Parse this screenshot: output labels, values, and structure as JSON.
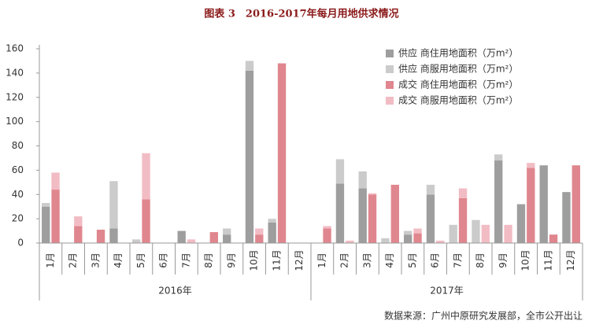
{
  "chart_data": {
    "type": "stacked-bar",
    "title": "图表 3　2016-2017年每月用地供求情况",
    "categories": [
      "1月",
      "2月",
      "3月",
      "4月",
      "5月",
      "6月",
      "7月",
      "8月",
      "9月",
      "10月",
      "11月",
      "12月",
      "1月",
      "2月",
      "3月",
      "4月",
      "5月",
      "6月",
      "7月",
      "8月",
      "9月",
      "10月",
      "11月",
      "12月"
    ],
    "x_groups": [
      "2016年",
      "2017年"
    ],
    "series": [
      {
        "name": "供应 商住用地面积（万m²）",
        "color": "#9e9e9e",
        "values": [
          30,
          0,
          0,
          12,
          0,
          0,
          10,
          0,
          7,
          142,
          17,
          0,
          0,
          49,
          45,
          0,
          7,
          40,
          0,
          0,
          68,
          32,
          64,
          42
        ]
      },
      {
        "name": "供应 商服用地面积（万m²）",
        "color": "#cbcbcb",
        "values": [
          3,
          0,
          0,
          39,
          3,
          0,
          0,
          0,
          5,
          8,
          3,
          0,
          0,
          20,
          14,
          4,
          3,
          8,
          15,
          19,
          5,
          0,
          0,
          0
        ]
      },
      {
        "name": "成交 商住用地面积（万m²）",
        "color": "#e0868e",
        "values": [
          44,
          14,
          11,
          0,
          36,
          0,
          0,
          9,
          0,
          7,
          148,
          0,
          12,
          0,
          40,
          48,
          8,
          0,
          37,
          0,
          0,
          62,
          7,
          64
        ]
      },
      {
        "name": "成交 商服用地面积（万m²）",
        "color": "#f2bcc4",
        "values": [
          14,
          8,
          0,
          0,
          38,
          0,
          3,
          0,
          0,
          5,
          0,
          0,
          2,
          2,
          1,
          0,
          4,
          2,
          8,
          15,
          15,
          4,
          0,
          0
        ]
      }
    ],
    "ylim": [
      0,
      160
    ],
    "yticks": [
      0,
      20,
      40,
      60,
      80,
      100,
      120,
      140,
      160
    ],
    "source": "数据来源：广州中原研究发展部，全市公开出让"
  }
}
